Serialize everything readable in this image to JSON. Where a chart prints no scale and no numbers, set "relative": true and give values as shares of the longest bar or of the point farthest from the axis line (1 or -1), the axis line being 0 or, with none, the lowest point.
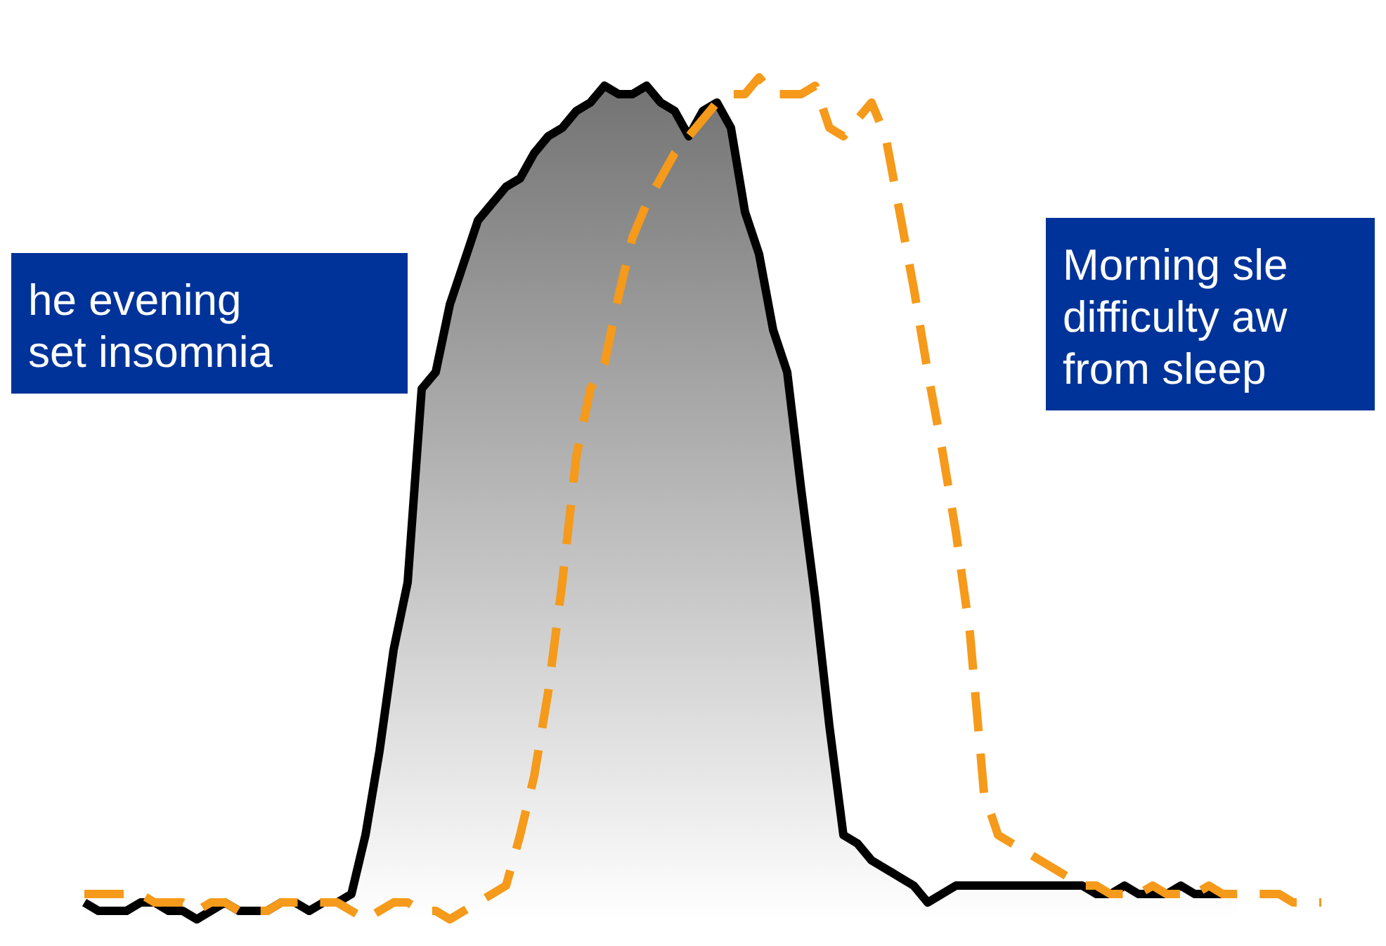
{
  "chart_data": {
    "type": "line",
    "relative": true,
    "categories": [
      null,
      null,
      null,
      null,
      null,
      null,
      null,
      null,
      null,
      null,
      null,
      null,
      null,
      null,
      null,
      null,
      null,
      null,
      null,
      null,
      null,
      null,
      null,
      null,
      null,
      null,
      null,
      null,
      null,
      null,
      null,
      null,
      null,
      null,
      null,
      null,
      null,
      null,
      null,
      null,
      null,
      null,
      null,
      null,
      null,
      null,
      null,
      null,
      null,
      null,
      null,
      null,
      null,
      null,
      null,
      null,
      null,
      null,
      null,
      null,
      null,
      null,
      null,
      null,
      null,
      null,
      null,
      null,
      null,
      null,
      null,
      null,
      null,
      null,
      null,
      null,
      null,
      null,
      null,
      null,
      null,
      null,
      null,
      null,
      null,
      null,
      null,
      null,
      null
    ],
    "annotations": [
      "he evening\nset insomnia",
      "Morning sle\ndifficulty aw\nfrom sleep"
    ],
    "series": [
      {
        "type": "area",
        "color": "#000000",
        "values": [
          0.02,
          0.01,
          0.01,
          0.01,
          0.02,
          0.02,
          0.01,
          0.01,
          0,
          0.01,
          0.02,
          0.01,
          0.01,
          0.01,
          0.02,
          0.02,
          0.01,
          0.02,
          0.02,
          0.03,
          0.1,
          0.2,
          0.32,
          0.4,
          0.63,
          0.65,
          0.73,
          0.78,
          0.83,
          0.85,
          0.87,
          0.88,
          0.91,
          0.93,
          0.94,
          0.96,
          0.97,
          0.99,
          0.98,
          0.98,
          0.99,
          0.97,
          0.96,
          0.93,
          0.96,
          0.97,
          0.94,
          0.84,
          0.79,
          0.7,
          0.65,
          0.51,
          0.38,
          0.23,
          0.1,
          0.09,
          0.07,
          0.06,
          0.05,
          0.04,
          0.02,
          0.03,
          0.04,
          0.04,
          0.04,
          0.04,
          0.04,
          0.04,
          0.04,
          0.04,
          0.04,
          0.04,
          0.03,
          0.03,
          0.04,
          0.03,
          0.03,
          0.03,
          0.04,
          0.03,
          0.03,
          0.03,
          0.03,
          null,
          null,
          null,
          null,
          null,
          null
        ]
      },
      {
        "color": "#f59a1a",
        "line_style": "dashed",
        "values": [
          0.03,
          0.03,
          0.03,
          0.03,
          0.03,
          0.02,
          0.02,
          0.02,
          0.01,
          0.02,
          0.02,
          0.01,
          0.01,
          0.01,
          0.02,
          0.02,
          0.02,
          0.02,
          0.02,
          0.01,
          0,
          0.01,
          0.02,
          0.02,
          0.01,
          0.01,
          0,
          0.01,
          0.02,
          0.03,
          0.04,
          0.1,
          0.17,
          0.27,
          0.4,
          0.55,
          0.63,
          0.66,
          0.74,
          0.81,
          0.85,
          0.88,
          0.91,
          0.93,
          0.95,
          0.97,
          0.98,
          0.98,
          1,
          0.98,
          0.98,
          0.98,
          0.99,
          0.94,
          0.93,
          0.95,
          0.97,
          0.93,
          0.84,
          0.75,
          0.65,
          0.56,
          0.46,
          0.34,
          0.15,
          0.1,
          0.09,
          0.08,
          0.07,
          0.06,
          0.05,
          0.04,
          0.04,
          0.03,
          0.03,
          0.03,
          0.04,
          0.03,
          0.03,
          0.03,
          0.04,
          0.03,
          0.03,
          0.03,
          0.03,
          0.03,
          0.02,
          0.02,
          0.02
        ]
      }
    ]
  }
}
